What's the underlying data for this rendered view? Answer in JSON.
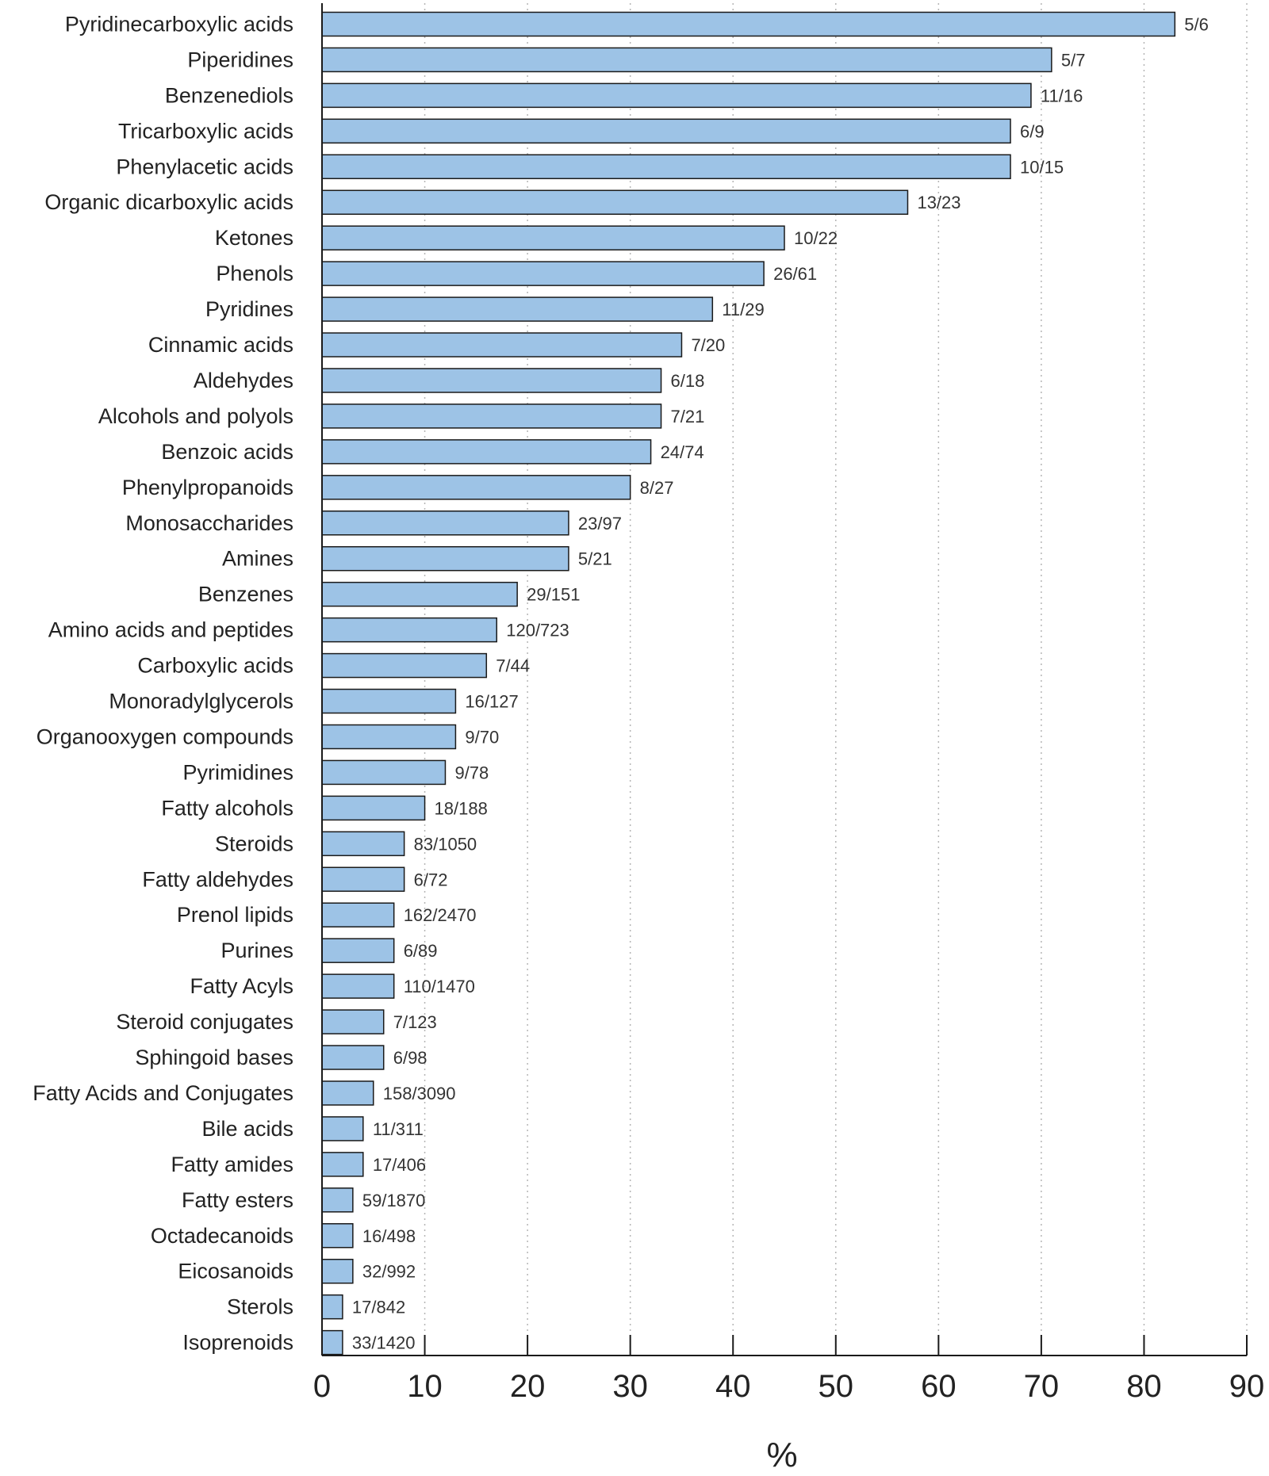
{
  "chart_data": {
    "type": "bar",
    "orientation": "horizontal",
    "title": "",
    "xlabel": "%",
    "ylabel": "",
    "xlim": [
      0,
      90
    ],
    "xticks": [
      0,
      10,
      20,
      30,
      40,
      50,
      60,
      70,
      80,
      90
    ],
    "grid": "vertical dotted",
    "bar_color": "#9dc3e6",
    "bar_edge_color": "#1a1a1a",
    "categories": [
      "Pyridinecarboxylic acids",
      "Piperidines",
      "Benzenediols",
      "Tricarboxylic acids",
      "Phenylacetic acids",
      "Organic dicarboxylic acids",
      "Ketones",
      "Phenols",
      "Pyridines",
      "Cinnamic acids",
      "Aldehydes",
      "Alcohols and polyols",
      "Benzoic acids",
      "Phenylpropanoids",
      "Monosaccharides",
      "Amines",
      "Benzenes",
      "Amino acids and peptides",
      "Carboxylic acids",
      "Monoradylglycerols",
      "Organooxygen compounds",
      "Pyrimidines",
      "Fatty alcohols",
      "Steroids",
      "Fatty aldehydes",
      "Prenol lipids",
      "Purines",
      "Fatty Acyls",
      "Steroid conjugates",
      "Sphingoid bases",
      "Fatty Acids and Conjugates",
      "Bile acids",
      "Fatty amides",
      "Fatty esters",
      "Octadecanoids",
      "Eicosanoids",
      "Sterols",
      "Isoprenoids"
    ],
    "values": [
      83,
      71,
      69,
      67,
      67,
      57,
      45,
      43,
      38,
      35,
      33,
      33,
      32,
      30,
      24,
      24,
      19,
      17,
      16,
      13,
      13,
      12,
      10,
      8,
      8,
      7,
      7,
      7,
      6,
      6,
      5,
      4,
      4,
      3,
      3,
      3,
      2,
      2
    ],
    "bar_labels": [
      "5/6",
      "5/7",
      "11/16",
      "6/9",
      "10/15",
      "13/23",
      "10/22",
      "26/61",
      "11/29",
      "7/20",
      "6/18",
      "7/21",
      "24/74",
      "8/27",
      "23/97",
      "5/21",
      "29/151",
      "120/723",
      "7/44",
      "16/127",
      "9/70",
      "9/78",
      "18/188",
      "83/1050",
      "6/72",
      "162/2470",
      "6/89",
      "110/1470",
      "7/123",
      "6/98",
      "158/3090",
      "11/311",
      "17/406",
      "59/1870",
      "16/498",
      "32/992",
      "17/842",
      "33/1420"
    ]
  }
}
